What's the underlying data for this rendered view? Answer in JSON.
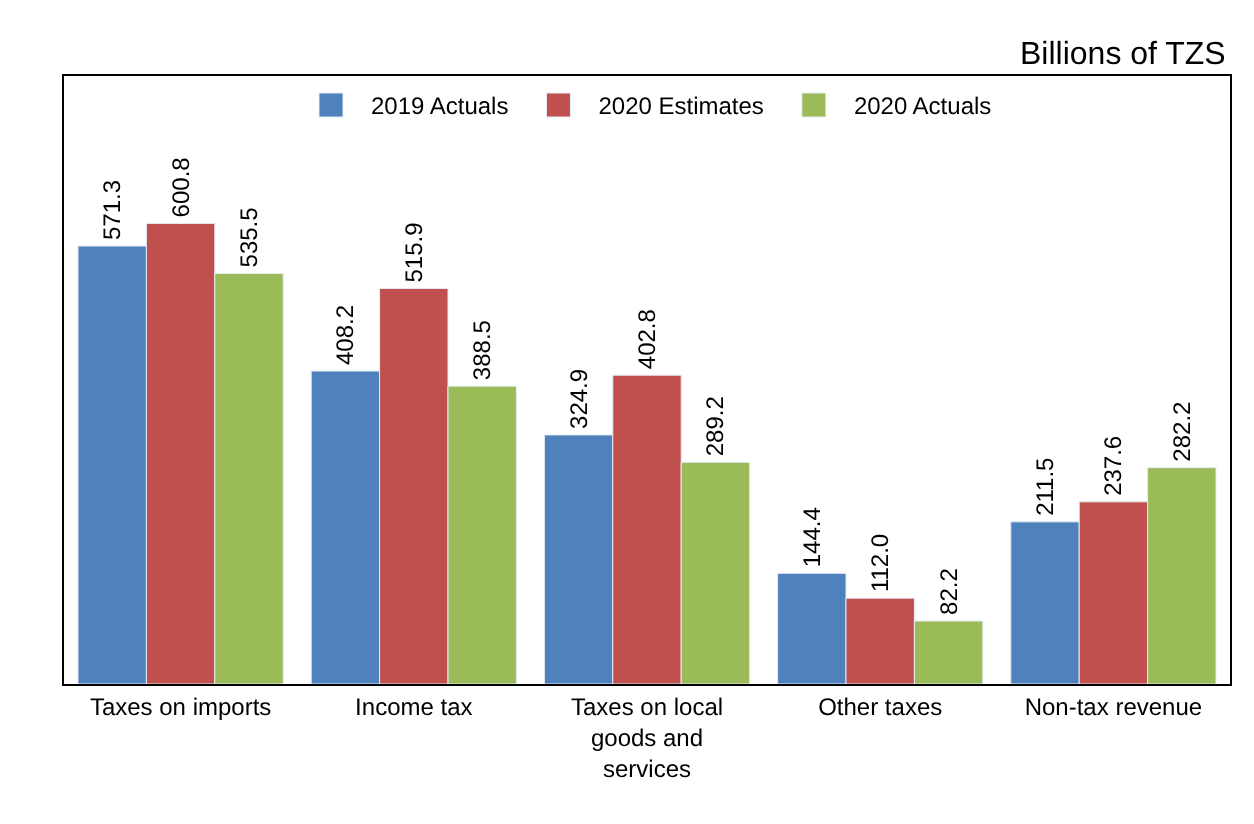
{
  "chart_data": {
    "type": "bar",
    "subtitle": "Billions of TZS",
    "categories": [
      "Taxes on imports",
      "Income tax",
      "Taxes on local goods and services",
      "Other taxes",
      "Non-tax revenue"
    ],
    "series": [
      {
        "name": "2019 Actuals",
        "color": "#4f81bd",
        "values": [
          571.3,
          408.2,
          324.9,
          144.4,
          211.5
        ],
        "value_labels": [
          "571.3",
          "408.2",
          "324.9",
          "144.4",
          "211.5"
        ]
      },
      {
        "name": "2020 Estimates",
        "color": "#c0504d",
        "values": [
          600.8,
          515.9,
          402.8,
          112.0,
          237.6
        ],
        "value_labels": [
          "600.8",
          "515.9",
          "402.8",
          "112.0",
          "237.6"
        ]
      },
      {
        "name": "2020 Actuals",
        "color": "#9bbb59",
        "values": [
          535.5,
          388.5,
          289.2,
          82.2,
          282.2
        ],
        "value_labels": [
          "535.5",
          "388.5",
          "289.2",
          "82.2",
          "282.2"
        ]
      }
    ],
    "legend": "top",
    "tick_labels": "x"
  }
}
